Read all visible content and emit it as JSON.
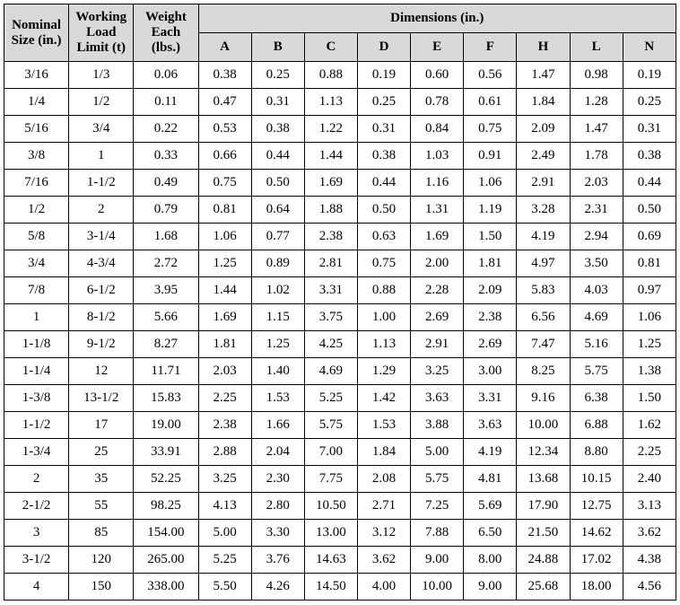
{
  "headers": {
    "nominal": "Nominal Size (in.)",
    "wll": "Working Load Limit (t)",
    "weight": "Weight Each (lbs.)",
    "dimensions_group": "Dimensions (in.)",
    "dims": [
      "A",
      "B",
      "C",
      "D",
      "E",
      "F",
      "H",
      "L",
      "N"
    ]
  },
  "rows": [
    {
      "nominal": "3/16",
      "wll": "1/3",
      "weight": "0.06",
      "d": [
        "0.38",
        "0.25",
        "0.88",
        "0.19",
        "0.60",
        "0.56",
        "1.47",
        "0.98",
        "0.19"
      ]
    },
    {
      "nominal": "1/4",
      "wll": "1/2",
      "weight": "0.11",
      "d": [
        "0.47",
        "0.31",
        "1.13",
        "0.25",
        "0.78",
        "0.61",
        "1.84",
        "1.28",
        "0.25"
      ]
    },
    {
      "nominal": "5/16",
      "wll": "3/4",
      "weight": "0.22",
      "d": [
        "0.53",
        "0.38",
        "1.22",
        "0.31",
        "0.84",
        "0.75",
        "2.09",
        "1.47",
        "0.31"
      ]
    },
    {
      "nominal": "3/8",
      "wll": "1",
      "weight": "0.33",
      "d": [
        "0.66",
        "0.44",
        "1.44",
        "0.38",
        "1.03",
        "0.91",
        "2.49",
        "1.78",
        "0.38"
      ]
    },
    {
      "nominal": "7/16",
      "wll": "1-1/2",
      "weight": "0.49",
      "d": [
        "0.75",
        "0.50",
        "1.69",
        "0.44",
        "1.16",
        "1.06",
        "2.91",
        "2.03",
        "0.44"
      ]
    },
    {
      "nominal": "1/2",
      "wll": "2",
      "weight": "0.79",
      "d": [
        "0.81",
        "0.64",
        "1.88",
        "0.50",
        "1.31",
        "1.19",
        "3.28",
        "2.31",
        "0.50"
      ]
    },
    {
      "nominal": "5/8",
      "wll": "3-1/4",
      "weight": "1.68",
      "d": [
        "1.06",
        "0.77",
        "2.38",
        "0.63",
        "1.69",
        "1.50",
        "4.19",
        "2.94",
        "0.69"
      ]
    },
    {
      "nominal": "3/4",
      "wll": "4-3/4",
      "weight": "2.72",
      "d": [
        "1.25",
        "0.89",
        "2.81",
        "0.75",
        "2.00",
        "1.81",
        "4.97",
        "3.50",
        "0.81"
      ]
    },
    {
      "nominal": "7/8",
      "wll": "6-1/2",
      "weight": "3.95",
      "d": [
        "1.44",
        "1.02",
        "3.31",
        "0.88",
        "2.28",
        "2.09",
        "5.83",
        "4.03",
        "0.97"
      ]
    },
    {
      "nominal": "1",
      "wll": "8-1/2",
      "weight": "5.66",
      "d": [
        "1.69",
        "1.15",
        "3.75",
        "1.00",
        "2.69",
        "2.38",
        "6.56",
        "4.69",
        "1.06"
      ]
    },
    {
      "nominal": "1-1/8",
      "wll": "9-1/2",
      "weight": "8.27",
      "d": [
        "1.81",
        "1.25",
        "4.25",
        "1.13",
        "2.91",
        "2.69",
        "7.47",
        "5.16",
        "1.25"
      ]
    },
    {
      "nominal": "1-1/4",
      "wll": "12",
      "weight": "11.71",
      "d": [
        "2.03",
        "1.40",
        "4.69",
        "1.29",
        "3.25",
        "3.00",
        "8.25",
        "5.75",
        "1.38"
      ]
    },
    {
      "nominal": "1-3/8",
      "wll": "13-1/2",
      "weight": "15.83",
      "d": [
        "2.25",
        "1.53",
        "5.25",
        "1.42",
        "3.63",
        "3.31",
        "9.16",
        "6.38",
        "1.50"
      ]
    },
    {
      "nominal": "1-1/2",
      "wll": "17",
      "weight": "19.00",
      "d": [
        "2.38",
        "1.66",
        "5.75",
        "1.53",
        "3.88",
        "3.63",
        "10.00",
        "6.88",
        "1.62"
      ]
    },
    {
      "nominal": "1-3/4",
      "wll": "25",
      "weight": "33.91",
      "d": [
        "2.88",
        "2.04",
        "7.00",
        "1.84",
        "5.00",
        "4.19",
        "12.34",
        "8.80",
        "2.25"
      ]
    },
    {
      "nominal": "2",
      "wll": "35",
      "weight": "52.25",
      "d": [
        "3.25",
        "2.30",
        "7.75",
        "2.08",
        "5.75",
        "4.81",
        "13.68",
        "10.15",
        "2.40"
      ]
    },
    {
      "nominal": "2-1/2",
      "wll": "55",
      "weight": "98.25",
      "d": [
        "4.13",
        "2.80",
        "10.50",
        "2.71",
        "7.25",
        "5.69",
        "17.90",
        "12.75",
        "3.13"
      ]
    },
    {
      "nominal": "3",
      "wll": "85",
      "weight": "154.00",
      "d": [
        "5.00",
        "3.30",
        "13.00",
        "3.12",
        "7.88",
        "6.50",
        "21.50",
        "14.62",
        "3.62"
      ]
    },
    {
      "nominal": "3-1/2",
      "wll": "120",
      "weight": "265.00",
      "d": [
        "5.25",
        "3.76",
        "14.63",
        "3.62",
        "9.00",
        "8.00",
        "24.88",
        "17.02",
        "4.38"
      ]
    },
    {
      "nominal": "4",
      "wll": "150",
      "weight": "338.00",
      "d": [
        "5.50",
        "4.26",
        "14.50",
        "4.00",
        "10.00",
        "9.00",
        "25.68",
        "18.00",
        "4.56"
      ]
    }
  ]
}
